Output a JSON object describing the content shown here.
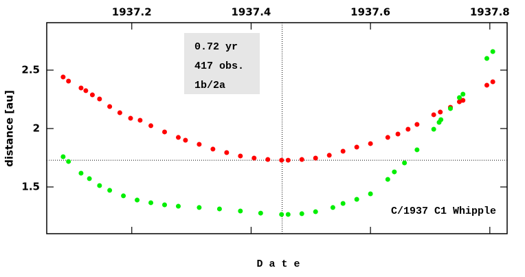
{
  "chart_data": {
    "type": "scatter",
    "xlabel": "D a t e",
    "ylabel": "distance [au]",
    "label": "C/1937 C1 Whipple",
    "annotations": [
      "0.72 yr",
      "417 obs.",
      "1b/2a"
    ],
    "xlim": [
      1937.0575,
      1937.829
    ],
    "ylim": [
      1.1,
      2.906
    ],
    "xticks": [
      1937.2,
      1937.4,
      1937.6,
      1937.8
    ],
    "yticks": [
      1.5,
      2,
      2.5
    ],
    "vline": 1937.452,
    "hline": 1.729,
    "series": [
      {
        "color": "#ff0000",
        "x": [
          1937.085,
          1937.094,
          1937.115,
          1937.123,
          1937.134,
          1937.146,
          1937.163,
          1937.18,
          1937.198,
          1937.214,
          1937.232,
          1937.255,
          1937.278,
          1937.29,
          1937.313,
          1937.336,
          1937.359,
          1937.382,
          1937.405,
          1937.428,
          1937.451,
          1937.462,
          1937.485,
          1937.508,
          1937.531,
          1937.554,
          1937.577,
          1937.6,
          1937.629,
          1937.646,
          1937.663,
          1937.678,
          1937.706,
          1937.717,
          1937.734,
          1937.749,
          1937.755,
          1937.795,
          1937.805
        ],
        "values": [
          2.441,
          2.406,
          2.347,
          2.324,
          2.288,
          2.253,
          2.188,
          2.135,
          2.088,
          2.071,
          2.024,
          1.971,
          1.924,
          1.9,
          1.865,
          1.824,
          1.794,
          1.765,
          1.747,
          1.735,
          1.729,
          1.729,
          1.735,
          1.747,
          1.771,
          1.806,
          1.841,
          1.871,
          1.924,
          1.953,
          1.994,
          2.035,
          2.118,
          2.141,
          2.182,
          2.229,
          2.241,
          2.371,
          2.4
        ]
      },
      {
        "color": "#00ee00",
        "x": [
          1937.085,
          1937.094,
          1937.115,
          1937.129,
          1937.146,
          1937.163,
          1937.186,
          1937.209,
          1937.232,
          1937.255,
          1937.278,
          1937.313,
          1937.347,
          1937.382,
          1937.416,
          1937.451,
          1937.462,
          1937.485,
          1937.508,
          1937.537,
          1937.554,
          1937.577,
          1937.6,
          1937.629,
          1937.64,
          1937.657,
          1937.678,
          1937.706,
          1937.715,
          1937.718,
          1937.734,
          1937.749,
          1937.755,
          1937.795,
          1937.805
        ],
        "values": [
          1.759,
          1.718,
          1.618,
          1.571,
          1.512,
          1.471,
          1.424,
          1.388,
          1.365,
          1.347,
          1.335,
          1.324,
          1.312,
          1.294,
          1.276,
          1.265,
          1.265,
          1.271,
          1.288,
          1.324,
          1.359,
          1.394,
          1.441,
          1.565,
          1.629,
          1.706,
          1.818,
          1.994,
          2.053,
          2.076,
          2.171,
          2.265,
          2.294,
          2.6,
          2.659
        ]
      }
    ]
  }
}
